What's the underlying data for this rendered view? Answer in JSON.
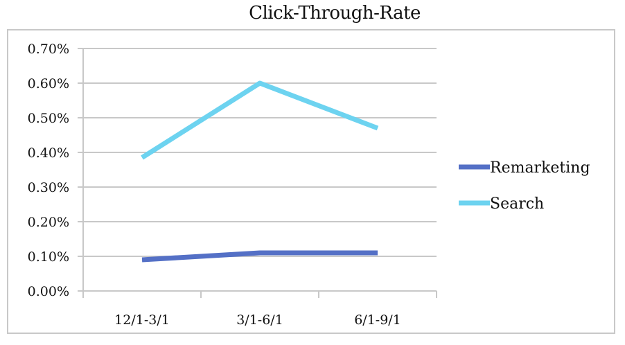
{
  "chart_data": {
    "type": "line",
    "title": "Click-Through-Rate",
    "xlabel": "",
    "ylabel": "",
    "categories": [
      "12/1-3/1",
      "3/1-6/1",
      "6/1-9/1"
    ],
    "y_ticks": [
      "0.00%",
      "0.10%",
      "0.20%",
      "0.30%",
      "0.40%",
      "0.50%",
      "0.60%",
      "0.70%"
    ],
    "ylim": [
      0,
      0.7
    ],
    "grid": true,
    "legend_position": "right",
    "series": [
      {
        "name": "Remarketing",
        "values": [
          0.09,
          0.11,
          0.11
        ],
        "color": "#5470c6"
      },
      {
        "name": "Search",
        "values": [
          0.385,
          0.6,
          0.47
        ],
        "color": "#6dd3f0"
      }
    ]
  }
}
